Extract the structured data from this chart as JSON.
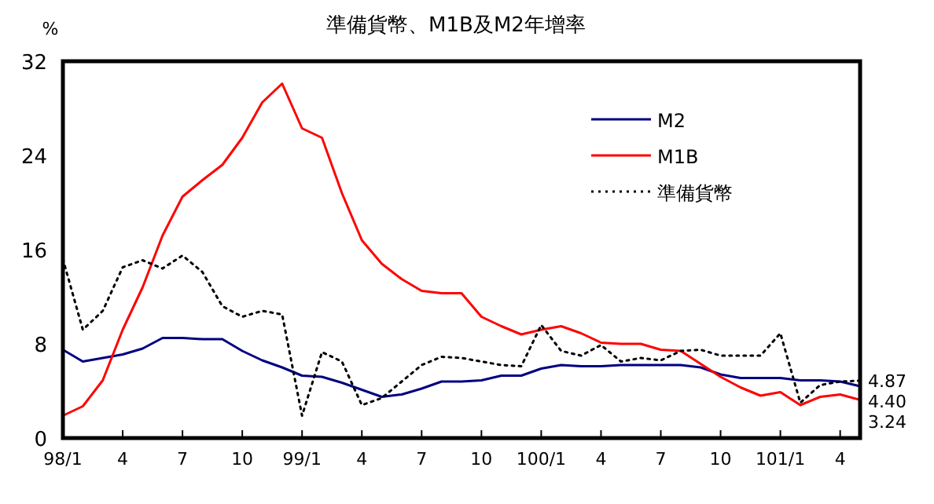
{
  "chart_data": {
    "type": "line",
    "title": "準備貨幣、M1B及M2年增率",
    "ylabel": "%",
    "x": [
      "2009-01",
      "2009-02",
      "2009-03",
      "2009-04",
      "2009-05",
      "2009-06",
      "2009-07",
      "2009-08",
      "2009-09",
      "2009-10",
      "2009-11",
      "2009-12",
      "2010-01",
      "2010-02",
      "2010-03",
      "2010-04",
      "2010-05",
      "2010-06",
      "2010-07",
      "2010-08",
      "2010-09",
      "2010-10",
      "2010-11",
      "2010-12",
      "2011-01",
      "2011-02",
      "2011-03",
      "2011-04",
      "2011-05",
      "2011-06",
      "2011-07",
      "2011-08",
      "2011-09",
      "2011-10",
      "2011-11",
      "2011-12",
      "2012-01",
      "2012-02",
      "2012-03",
      "2012-04",
      "2012-05"
    ],
    "xlim": [
      "2009-01",
      "2012-05"
    ],
    "xticks": [
      {
        "value": "2009-01",
        "label": "98/1"
      },
      {
        "value": "2009-04",
        "label": "4"
      },
      {
        "value": "2009-07",
        "label": "7"
      },
      {
        "value": "2009-10",
        "label": "10"
      },
      {
        "value": "2010-01",
        "label": "99/1"
      },
      {
        "value": "2010-04",
        "label": "4"
      },
      {
        "value": "2010-07",
        "label": "7"
      },
      {
        "value": "2010-10",
        "label": "10"
      },
      {
        "value": "2011-01",
        "label": "100/1"
      },
      {
        "value": "2011-04",
        "label": "4"
      },
      {
        "value": "2011-07",
        "label": "7"
      },
      {
        "value": "2011-10",
        "label": "10"
      },
      {
        "value": "2012-01",
        "label": "101/1"
      },
      {
        "value": "2012-04",
        "label": "4"
      }
    ],
    "ylim": [
      0,
      32
    ],
    "yticks": [
      0,
      8,
      16,
      24,
      32
    ],
    "legend": "top right",
    "grid": false,
    "series": [
      {
        "name": "M2",
        "color": "#000080",
        "line_style": "solid",
        "values": [
          7.5,
          6.5,
          6.8,
          7.1,
          7.6,
          8.5,
          8.5,
          8.4,
          8.4,
          7.4,
          6.6,
          6.0,
          5.3,
          5.2,
          4.7,
          4.1,
          3.5,
          3.7,
          4.2,
          4.8,
          4.8,
          4.9,
          5.3,
          5.3,
          5.9,
          6.2,
          6.1,
          6.1,
          6.2,
          6.2,
          6.2,
          6.2,
          6.0,
          5.4,
          5.1,
          5.1,
          5.1,
          4.9,
          4.9,
          4.8,
          4.4
        ],
        "value_labels": [
          null,
          null,
          null,
          null,
          null,
          null,
          null,
          null,
          null,
          null,
          null,
          null,
          null,
          null,
          null,
          null,
          null,
          null,
          null,
          null,
          null,
          null,
          null,
          null,
          null,
          null,
          null,
          null,
          null,
          null,
          null,
          null,
          null,
          null,
          null,
          null,
          null,
          null,
          null,
          null,
          "4.40"
        ]
      },
      {
        "name": "M1B",
        "color": "#ff0000",
        "line_style": "solid",
        "values": [
          1.9,
          2.7,
          4.9,
          9.2,
          12.8,
          17.2,
          20.5,
          21.9,
          23.2,
          25.5,
          28.5,
          30.1,
          26.3,
          25.5,
          20.8,
          16.8,
          14.8,
          13.5,
          12.5,
          12.3,
          12.3,
          10.3,
          9.5,
          8.8,
          9.2,
          9.5,
          8.9,
          8.1,
          8.0,
          8.0,
          7.5,
          7.4,
          6.3,
          5.2,
          4.3,
          3.6,
          3.9,
          2.8,
          3.5,
          3.7,
          3.24
        ],
        "value_labels": [
          null,
          null,
          null,
          null,
          null,
          null,
          null,
          null,
          null,
          null,
          null,
          null,
          null,
          null,
          null,
          null,
          null,
          null,
          null,
          null,
          null,
          null,
          null,
          null,
          null,
          null,
          null,
          null,
          null,
          null,
          null,
          null,
          null,
          null,
          null,
          null,
          null,
          null,
          null,
          null,
          "3.24"
        ]
      },
      {
        "name": "準備貨幣",
        "color": "#000000",
        "line_style": "dotted",
        "values": [
          15.2,
          9.2,
          10.8,
          14.5,
          15.1,
          14.4,
          15.5,
          14.1,
          11.2,
          10.3,
          10.8,
          10.5,
          1.9,
          7.3,
          6.5,
          2.8,
          3.4,
          4.8,
          6.2,
          6.9,
          6.8,
          6.5,
          6.2,
          6.1,
          9.6,
          7.4,
          7.0,
          7.9,
          6.5,
          6.8,
          6.6,
          7.4,
          7.5,
          7.0,
          7.0,
          7.0,
          8.9,
          3.0,
          4.5,
          4.8,
          4.87
        ],
        "value_labels": [
          null,
          null,
          null,
          null,
          null,
          null,
          null,
          null,
          null,
          null,
          null,
          null,
          null,
          null,
          null,
          null,
          null,
          null,
          null,
          null,
          null,
          null,
          null,
          null,
          null,
          null,
          null,
          null,
          null,
          null,
          null,
          null,
          null,
          null,
          null,
          null,
          null,
          null,
          null,
          null,
          "4.87"
        ]
      }
    ]
  }
}
